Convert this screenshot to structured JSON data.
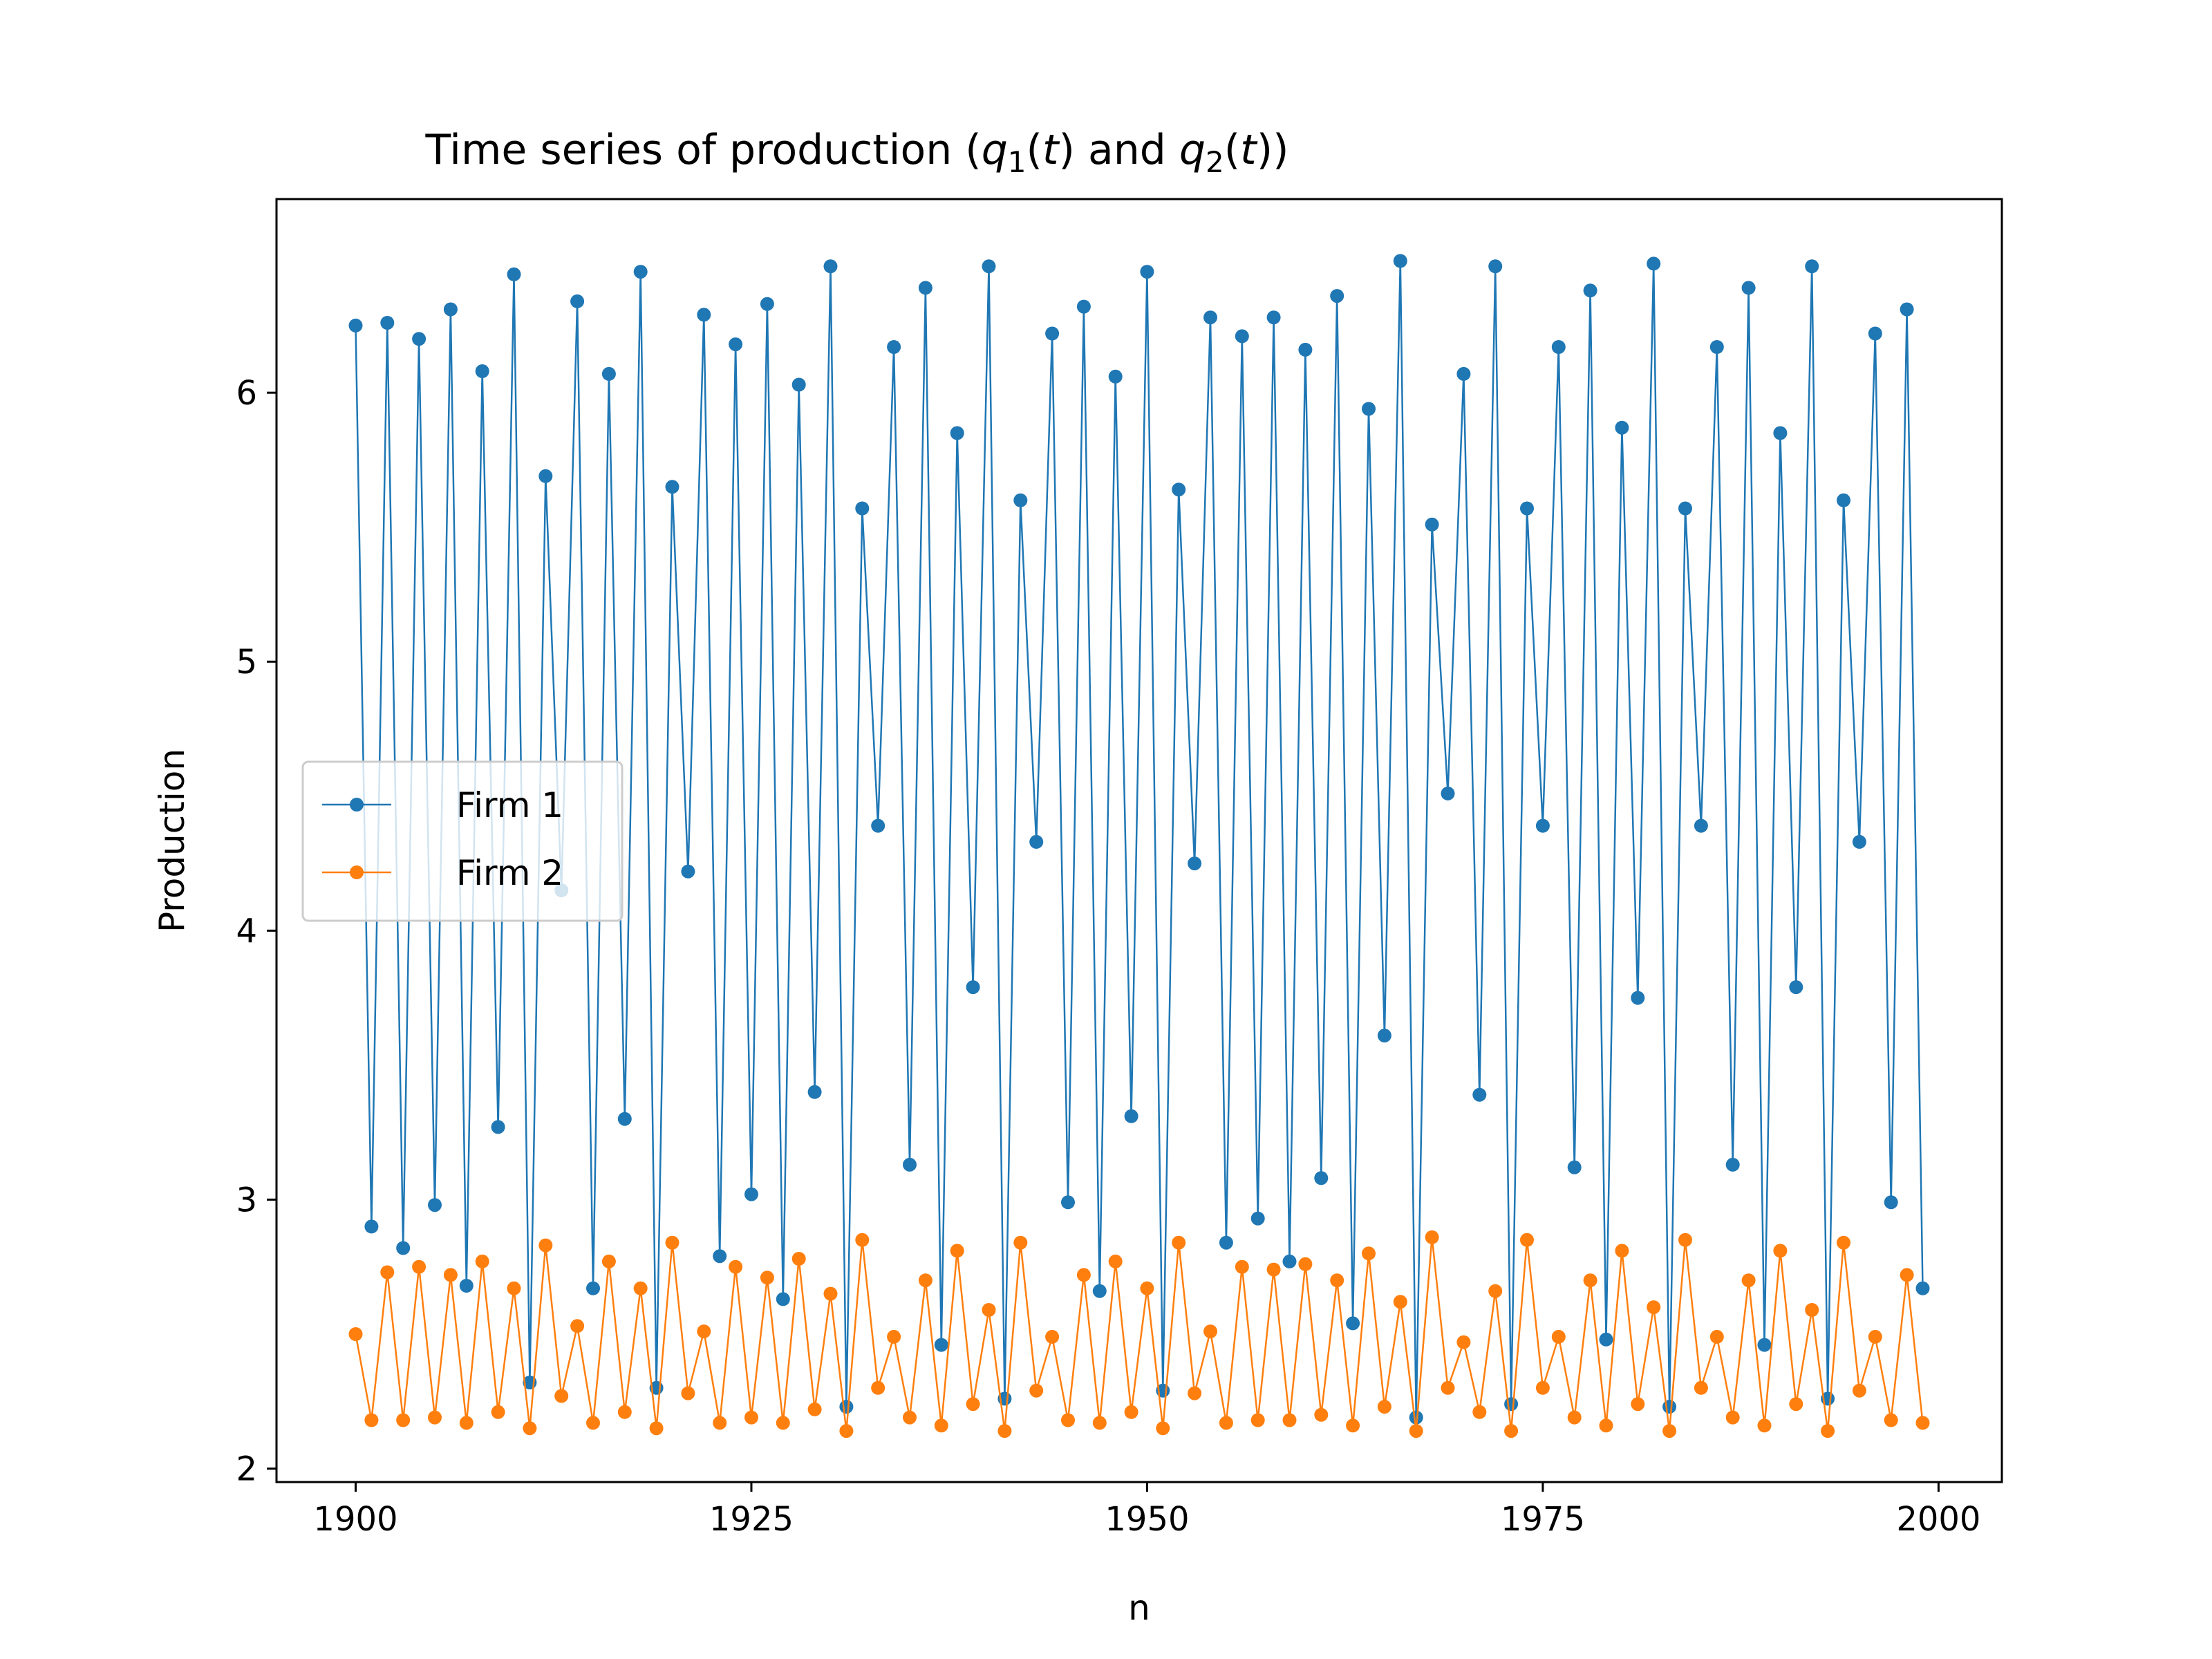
{
  "chart_data": {
    "type": "line",
    "title_parts": [
      {
        "text": "Time series of production (",
        "style": "normal"
      },
      {
        "text": "q",
        "style": "italic"
      },
      {
        "text": "1",
        "style": "sub"
      },
      {
        "text": "(",
        "style": "normal"
      },
      {
        "text": "t",
        "style": "italic"
      },
      {
        "text": ") and ",
        "style": "normal"
      },
      {
        "text": "q",
        "style": "italic"
      },
      {
        "text": "2",
        "style": "sub"
      },
      {
        "text": "(",
        "style": "normal"
      },
      {
        "text": "t",
        "style": "italic"
      },
      {
        "text": "))",
        "style": "normal"
      }
    ],
    "xlabel": "n",
    "ylabel": "Production",
    "xlim": [
      1895,
      2004
    ],
    "ylim": [
      1.95,
      6.72
    ],
    "xticks": [
      1900,
      1925,
      1950,
      1975,
      2000
    ],
    "yticks": [
      2,
      3,
      4,
      5,
      6
    ],
    "grid": false,
    "legend_position": "center-left",
    "x_start": 1900,
    "series": [
      {
        "name": "Firm 1",
        "color": "#1f77b4",
        "values": [
          6.25,
          2.9,
          6.26,
          2.82,
          6.2,
          2.98,
          6.31,
          2.68,
          6.08,
          3.27,
          6.44,
          2.32,
          5.69,
          4.15,
          6.34,
          2.67,
          6.07,
          3.3,
          6.45,
          2.3,
          5.65,
          4.22,
          6.29,
          2.79,
          6.18,
          3.02,
          6.33,
          2.63,
          6.03,
          3.4,
          6.47,
          2.23,
          5.57,
          4.39,
          6.17,
          3.13,
          6.39,
          2.46,
          5.85,
          3.79,
          6.47,
          2.26,
          5.6,
          4.33,
          6.22,
          2.99,
          6.32,
          2.66,
          6.06,
          3.31,
          6.45,
          2.29,
          5.64,
          4.25,
          6.28,
          2.84,
          6.21,
          2.93,
          6.28,
          2.77,
          6.16,
          3.08,
          6.36,
          2.54,
          5.94,
          3.61,
          6.49,
          2.19,
          5.51,
          4.51,
          6.07,
          3.39,
          6.47,
          2.24,
          5.57,
          4.39,
          6.17,
          3.12,
          6.38,
          2.48,
          5.87,
          3.75,
          6.48,
          2.23,
          5.57,
          4.39,
          6.17,
          3.13,
          6.39,
          2.46,
          5.85,
          3.79,
          6.47,
          2.26,
          5.6,
          4.33,
          6.22,
          2.99,
          6.31,
          2.67
        ]
      },
      {
        "name": "Firm 2",
        "color": "#ff7f0e",
        "values": [
          2.5,
          2.18,
          2.73,
          2.18,
          2.75,
          2.19,
          2.72,
          2.17,
          2.77,
          2.21,
          2.67,
          2.15,
          2.83,
          2.27,
          2.53,
          2.17,
          2.77,
          2.21,
          2.67,
          2.15,
          2.84,
          2.28,
          2.51,
          2.17,
          2.75,
          2.19,
          2.71,
          2.17,
          2.78,
          2.22,
          2.65,
          2.14,
          2.85,
          2.3,
          2.49,
          2.19,
          2.7,
          2.16,
          2.81,
          2.24,
          2.59,
          2.14,
          2.84,
          2.29,
          2.49,
          2.18,
          2.72,
          2.17,
          2.77,
          2.21,
          2.67,
          2.15,
          2.84,
          2.28,
          2.51,
          2.17,
          2.75,
          2.18,
          2.74,
          2.18,
          2.76,
          2.2,
          2.7,
          2.16,
          2.8,
          2.23,
          2.62,
          2.14,
          2.86,
          2.3,
          2.47,
          2.21,
          2.66,
          2.14,
          2.85,
          2.3,
          2.49,
          2.19,
          2.7,
          2.16,
          2.81,
          2.24,
          2.6,
          2.14,
          2.85,
          2.3,
          2.49,
          2.19,
          2.7,
          2.16,
          2.81,
          2.24,
          2.59,
          2.14,
          2.84,
          2.29,
          2.49,
          2.18,
          2.72,
          2.17
        ]
      }
    ]
  }
}
